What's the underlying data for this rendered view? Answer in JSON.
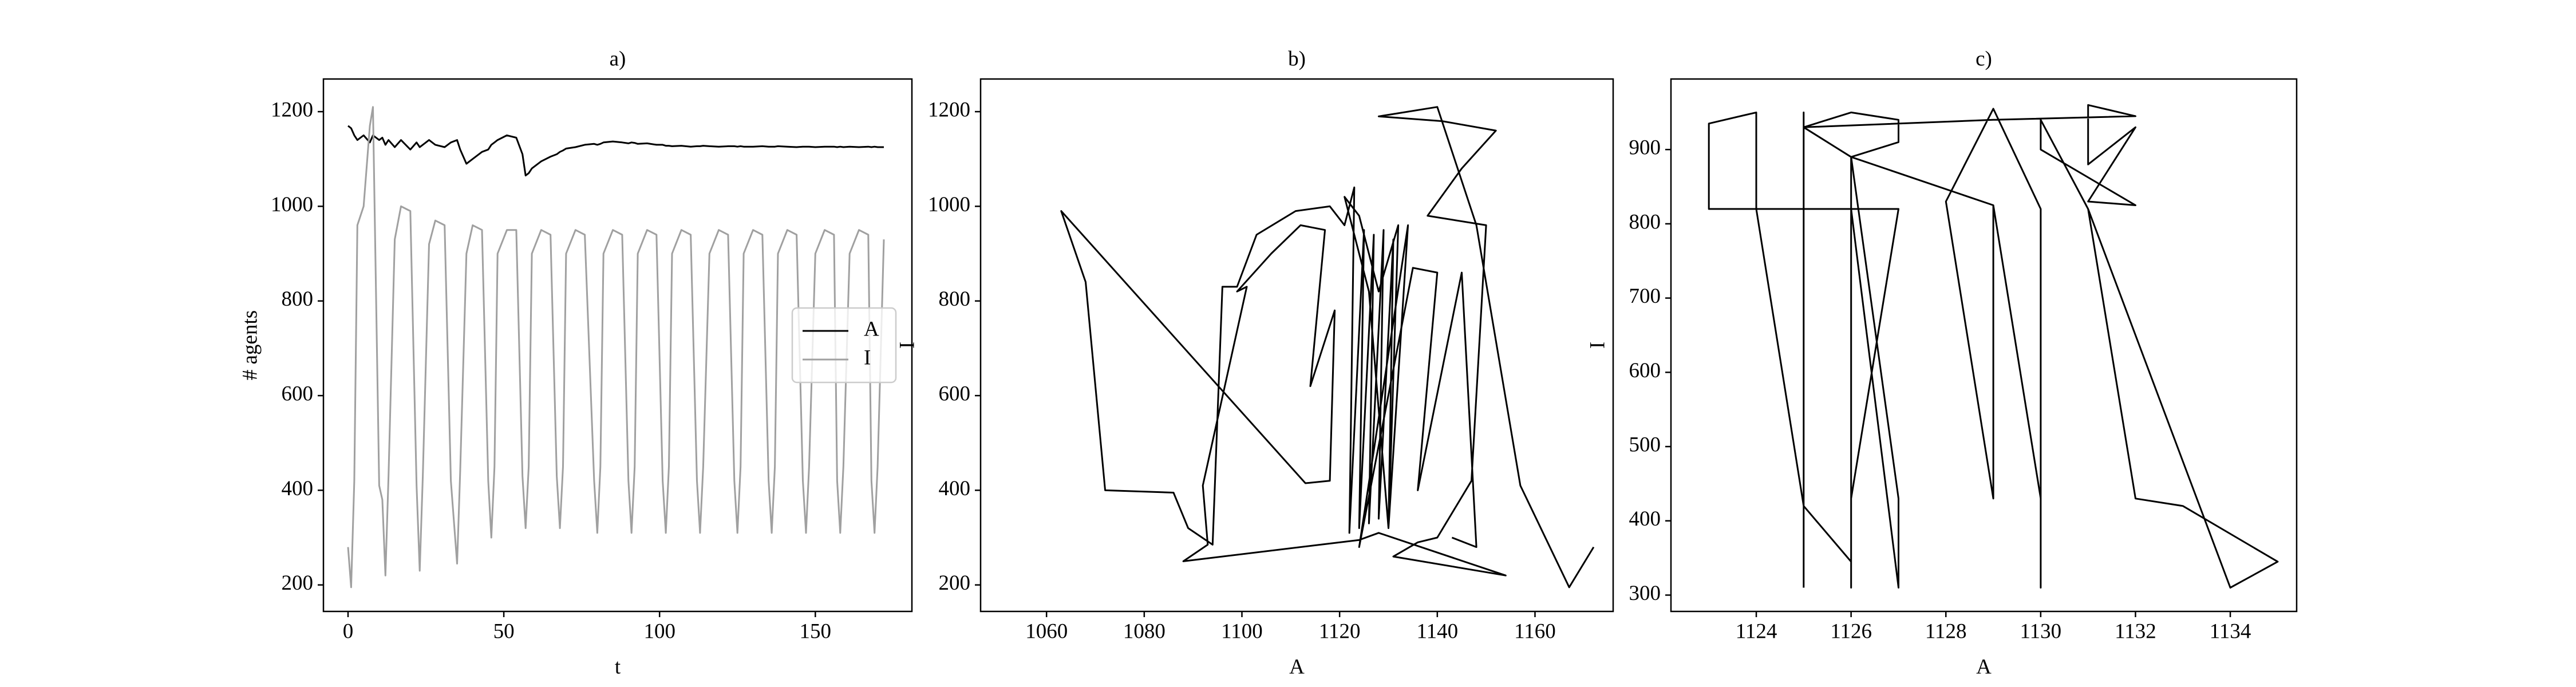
{
  "chart_data": [
    {
      "type": "line",
      "title": "a)",
      "xlabel": "t",
      "ylabel": "# agents",
      "x": [
        0,
        1,
        2,
        3,
        5,
        7,
        8,
        10,
        11,
        12,
        13,
        15,
        17,
        20,
        22,
        23,
        24,
        26,
        28,
        31,
        33,
        35,
        36,
        38,
        40,
        43,
        45,
        46,
        47,
        48,
        51,
        54,
        56,
        57,
        58,
        59,
        62,
        65,
        67,
        68,
        69,
        70,
        73,
        76,
        79,
        80,
        81,
        82,
        85,
        88,
        90,
        91,
        92,
        93,
        96,
        99,
        101,
        102,
        103,
        104,
        107,
        110,
        112,
        113,
        114,
        116,
        119,
        122,
        124,
        125,
        126,
        127,
        130,
        133,
        135,
        136,
        137,
        138,
        141,
        144,
        146,
        147,
        148,
        150,
        153,
        156,
        157,
        158,
        159,
        161,
        164,
        167,
        168,
        169,
        170,
        172
      ],
      "series": [
        {
          "name": "A",
          "color": "#000000",
          "values": [
            1170,
            1165,
            1150,
            1140,
            1150,
            1135,
            1150,
            1140,
            1145,
            1130,
            1140,
            1125,
            1140,
            1120,
            1135,
            1125,
            1130,
            1140,
            1130,
            1125,
            1135,
            1140,
            1120,
            1090,
            1100,
            1115,
            1120,
            1130,
            1135,
            1140,
            1150,
            1145,
            1110,
            1065,
            1070,
            1080,
            1095,
            1105,
            1110,
            1115,
            1118,
            1122,
            1125,
            1130,
            1132,
            1130,
            1132,
            1135,
            1137,
            1135,
            1133,
            1135,
            1134,
            1132,
            1133,
            1130,
            1130,
            1128,
            1128,
            1127,
            1128,
            1126,
            1127,
            1127,
            1128,
            1127,
            1126,
            1127,
            1127,
            1126,
            1127,
            1126,
            1126,
            1127,
            1126,
            1126,
            1126,
            1127,
            1126,
            1125,
            1126,
            1126,
            1126,
            1125,
            1126,
            1126,
            1125,
            1126,
            1125,
            1126,
            1125,
            1126,
            1125,
            1126,
            1125,
            1125
          ]
        },
        {
          "name": "I",
          "color": "#a0a0a0",
          "values": [
            280,
            195,
            420,
            960,
            1000,
            1170,
            1210,
            410,
            380,
            220,
            430,
            930,
            1000,
            990,
            410,
            230,
            430,
            920,
            970,
            960,
            420,
            245,
            440,
            900,
            960,
            950,
            420,
            300,
            450,
            900,
            950,
            950,
            430,
            320,
            450,
            900,
            950,
            940,
            430,
            320,
            450,
            900,
            950,
            940,
            420,
            310,
            450,
            900,
            950,
            940,
            420,
            310,
            450,
            900,
            950,
            940,
            420,
            310,
            450,
            900,
            950,
            940,
            420,
            310,
            450,
            900,
            950,
            940,
            420,
            310,
            450,
            900,
            950,
            940,
            420,
            310,
            450,
            900,
            950,
            940,
            420,
            310,
            450,
            900,
            950,
            940,
            420,
            310,
            450,
            900,
            950,
            940,
            420,
            310,
            450,
            930
          ]
        }
      ],
      "xlim": [
        -7.9,
        181
      ],
      "xticks": [
        0,
        50,
        100,
        150
      ],
      "ylim": [
        144,
        1269
      ],
      "yticks": [
        200,
        400,
        600,
        800,
        1000,
        1200
      ],
      "legend": "center right"
    },
    {
      "type": "line",
      "title": "b)",
      "xlabel": "A",
      "ylabel": "I",
      "x": [
        1172,
        1167,
        1157,
        1148,
        1140,
        1128,
        1141,
        1152,
        1145,
        1138,
        1150,
        1147,
        1140,
        1136,
        1131,
        1154,
        1128,
        1124,
        1088,
        1093,
        1092,
        1101,
        1099,
        1106,
        1112,
        1117,
        1114,
        1119,
        1118,
        1113,
        1063,
        1068,
        1072,
        1086,
        1089,
        1094,
        1096,
        1099,
        1103,
        1111,
        1118,
        1121,
        1123,
        1122,
        1125,
        1124,
        1127,
        1126,
        1129,
        1128,
        1131,
        1130,
        1132,
        1128,
        1124,
        1121,
        1126,
        1130,
        1134,
        1124,
        1135,
        1140,
        1136,
        1145,
        1148,
        1143
      ],
      "series": [
        {
          "color": "#000000",
          "values": [
            280,
            195,
            410,
            960,
            1210,
            1190,
            1180,
            1160,
            1080,
            980,
            960,
            420,
            300,
            290,
            260,
            220,
            310,
            295,
            250,
            285,
            410,
            830,
            820,
            900,
            960,
            950,
            620,
            780,
            420,
            415,
            990,
            840,
            400,
            395,
            320,
            285,
            830,
            830,
            940,
            990,
            1000,
            960,
            1040,
            310,
            950,
            320,
            940,
            330,
            950,
            340,
            930,
            320,
            960,
            820,
            980,
            1020,
            820,
            320,
            960,
            280,
            870,
            860,
            400,
            860,
            280,
            300
          ]
        }
      ],
      "xlim": [
        1046.5,
        1176
      ],
      "xticks": [
        1060,
        1080,
        1100,
        1120,
        1140,
        1160
      ],
      "ylim": [
        144,
        1269
      ],
      "yticks": [
        200,
        400,
        600,
        800,
        1000,
        1200
      ]
    },
    {
      "type": "line",
      "title": "c)",
      "xlabel": "A",
      "ylabel": "I",
      "x": [
        1125,
        1125,
        1125,
        1126,
        1127,
        1127,
        1126,
        1126,
        1126,
        1127,
        1126,
        1123,
        1123,
        1124,
        1124,
        1125,
        1126,
        1126,
        1127,
        1127,
        1126,
        1129,
        1130,
        1130,
        1130,
        1129,
        1128,
        1129,
        1129,
        1126,
        1125,
        1129,
        1132,
        1131,
        1131,
        1132,
        1131,
        1132,
        1130,
        1130,
        1131,
        1132,
        1133,
        1135,
        1134,
        1131
      ],
      "series": [
        {
          "color": "#000000",
          "values": [
            310,
            950,
            930,
            950,
            940,
            910,
            890,
            310,
            430,
            820,
            820,
            820,
            935,
            950,
            820,
            420,
            345,
            820,
            310,
            430,
            890,
            825,
            430,
            310,
            820,
            955,
            830,
            430,
            825,
            890,
            930,
            940,
            945,
            960,
            880,
            930,
            830,
            825,
            900,
            940,
            820,
            430,
            420,
            345,
            310,
            820
          ]
        }
      ],
      "xlim": [
        1122.2,
        1135.4
      ],
      "xticks": [
        1124,
        1126,
        1128,
        1130,
        1132,
        1134
      ],
      "ylim": [
        278,
        995
      ],
      "yticks": [
        300,
        400,
        500,
        600,
        700,
        800,
        900
      ]
    }
  ]
}
